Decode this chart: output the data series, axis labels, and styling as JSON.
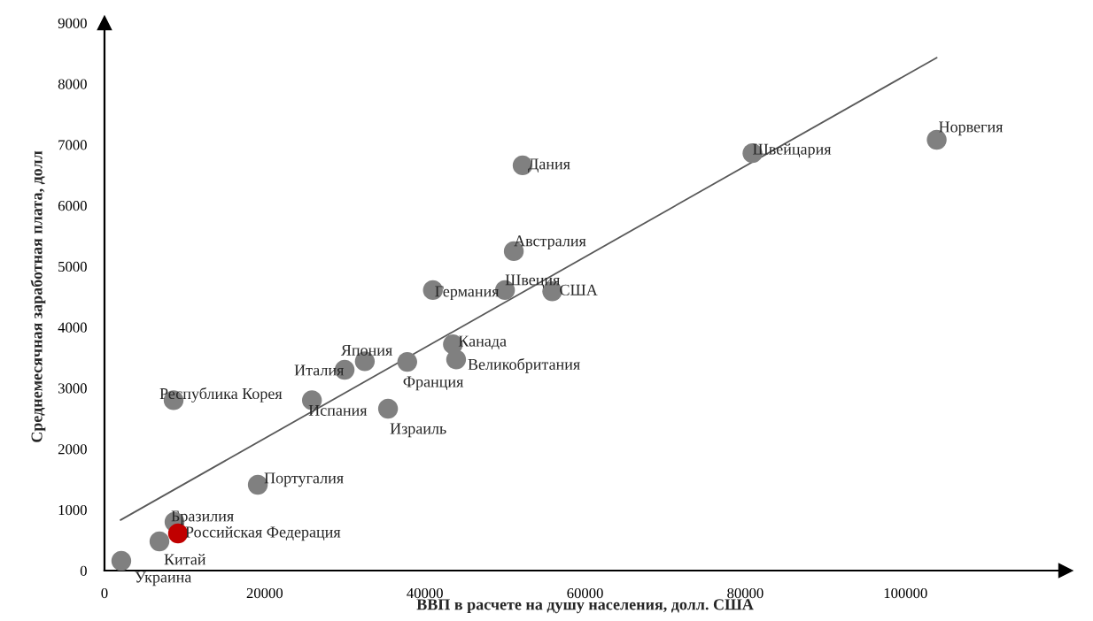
{
  "chart_data": {
    "type": "scatter",
    "xlabel": "ВВП в расчете на душу населения, долл. США",
    "ylabel": "Среднемесячная заработная плата, долл",
    "xlim": [
      0,
      120000
    ],
    "ylim": [
      0,
      9000
    ],
    "xticks": [
      0,
      20000,
      40000,
      60000,
      80000,
      100000
    ],
    "yticks": [
      0,
      1000,
      2000,
      3000,
      4000,
      5000,
      6000,
      7000,
      8000,
      9000
    ],
    "grid": false,
    "marker": "circle",
    "series": [
      {
        "x": [
          2100,
          6860,
          8740,
          9180,
          8630,
          19140,
          25900,
          29980,
          32500,
          37800,
          35400,
          43500,
          43900,
          41000,
          50000,
          55900,
          51100,
          52200,
          80900,
          103900
        ],
        "values": [
          160,
          480,
          800,
          610,
          2800,
          1410,
          2800,
          3300,
          3440,
          3430,
          2660,
          3720,
          3470,
          4610,
          4610,
          4590,
          5250,
          6660,
          6860,
          7080
        ],
        "colors": [
          "#808080",
          "#808080",
          "#808080",
          "#c00000",
          "#808080",
          "#808080",
          "#808080",
          "#808080",
          "#808080",
          "#808080",
          "#808080",
          "#808080",
          "#808080",
          "#808080",
          "#808080",
          "#808080",
          "#808080",
          "#808080",
          "#808080",
          "#808080"
        ]
      },
      {
        "type": "line",
        "x": [
          2000,
          103900
        ],
        "values": [
          830,
          8430
        ],
        "color": "#595959",
        "marker": "none"
      }
    ],
    "annotations": [
      {
        "text": "Украина",
        "x": 2100,
        "y": 160
      },
      {
        "text": "Китай",
        "x": 6860,
        "y": 480
      },
      {
        "text": "Бразилия",
        "x": 8740,
        "y": 800
      },
      {
        "text": "Российская Федерация",
        "x": 9180,
        "y": 610
      },
      {
        "text": "Республика Корея",
        "x": 8630,
        "y": 2800
      },
      {
        "text": "Португалия",
        "x": 19140,
        "y": 1410
      },
      {
        "text": "Испания",
        "x": 25900,
        "y": 2800
      },
      {
        "text": "Италия",
        "x": 29980,
        "y": 3300
      },
      {
        "text": "Япония",
        "x": 32500,
        "y": 3440
      },
      {
        "text": "Франция",
        "x": 37800,
        "y": 3430
      },
      {
        "text": "Израиль",
        "x": 35400,
        "y": 2660
      },
      {
        "text": "Канада",
        "x": 43500,
        "y": 3720
      },
      {
        "text": "Великобритания",
        "x": 43900,
        "y": 3470
      },
      {
        "text": "Германия",
        "x": 41000,
        "y": 4610
      },
      {
        "text": "Швеция",
        "x": 50000,
        "y": 4610
      },
      {
        "text": "США",
        "x": 55900,
        "y": 4590
      },
      {
        "text": "Австралия",
        "x": 51100,
        "y": 5250
      },
      {
        "text": "Дания",
        "x": 52200,
        "y": 6660
      },
      {
        "text": "Швейцария",
        "x": 80900,
        "y": 6860
      },
      {
        "text": "Норвегия",
        "x": 103900,
        "y": 7080
      }
    ]
  }
}
